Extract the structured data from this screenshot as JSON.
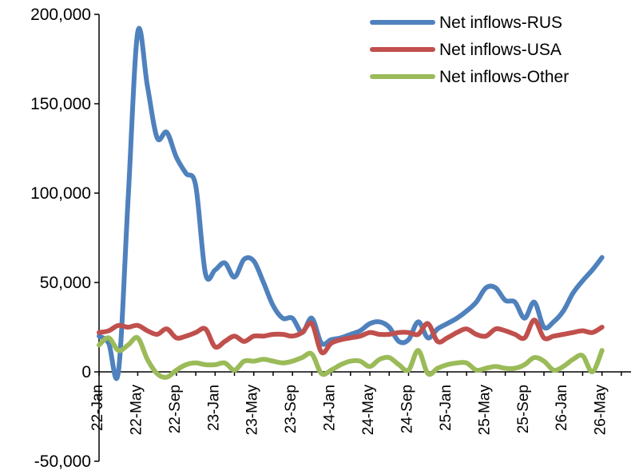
{
  "chart_data": {
    "type": "line",
    "title": "",
    "xlabel": "",
    "ylabel": "",
    "ylim": [
      -50000,
      200000
    ],
    "yticks": [
      -50000,
      0,
      50000,
      100000,
      150000,
      200000
    ],
    "ytick_labels": [
      "-50,000",
      "0",
      "50,000",
      "100,000",
      "150,000",
      "200,000"
    ],
    "xticks": [
      {
        "pos": 0,
        "label": "22-Jan"
      },
      {
        "pos": 4,
        "label": "22-May"
      },
      {
        "pos": 8,
        "label": "22-Sep"
      },
      {
        "pos": 12,
        "label": "23-Jan"
      },
      {
        "pos": 16,
        "label": "23-May"
      },
      {
        "pos": 20,
        "label": "23-Sep"
      },
      {
        "pos": 24,
        "label": "24-Jan"
      },
      {
        "pos": 28,
        "label": "24-May"
      },
      {
        "pos": 32,
        "label": "24-Sep"
      },
      {
        "pos": 36,
        "label": "25-Jan"
      },
      {
        "pos": 40,
        "label": "25-May"
      },
      {
        "pos": 44,
        "label": "25-Sep"
      },
      {
        "pos": 48,
        "label": "26-Jan"
      },
      {
        "pos": 52,
        "label": "26-May"
      }
    ],
    "x_min": 0,
    "x_max": 55,
    "grid": false,
    "legend_position": "top-right",
    "series": [
      {
        "name": "Net inflows-RUS",
        "color": "#4f81bd",
        "points": [
          [
            0,
            20000
          ],
          [
            1,
            16000
          ],
          [
            2,
            0
          ],
          [
            3,
            96000
          ],
          [
            4,
            190000
          ],
          [
            5,
            160000
          ],
          [
            6,
            131000
          ],
          [
            7,
            134000
          ],
          [
            8,
            120000
          ],
          [
            9,
            111000
          ],
          [
            10,
            104000
          ],
          [
            11,
            55000
          ],
          [
            12,
            57000
          ],
          [
            13,
            61000
          ],
          [
            14,
            53000
          ],
          [
            15,
            63000
          ],
          [
            16,
            62000
          ],
          [
            17,
            50000
          ],
          [
            18,
            37000
          ],
          [
            19,
            30000
          ],
          [
            20,
            30000
          ],
          [
            21,
            22000
          ],
          [
            22,
            30000
          ],
          [
            23,
            16000
          ],
          [
            24,
            18000
          ],
          [
            25,
            19000
          ],
          [
            26,
            21000
          ],
          [
            27,
            23000
          ],
          [
            28,
            27000
          ],
          [
            29,
            28000
          ],
          [
            30,
            25000
          ],
          [
            31,
            17000
          ],
          [
            32,
            18000
          ],
          [
            33,
            28000
          ],
          [
            34,
            19000
          ],
          [
            35,
            24000
          ],
          [
            36,
            27000
          ],
          [
            37,
            30000
          ],
          [
            38,
            34000
          ],
          [
            39,
            39000
          ],
          [
            40,
            47000
          ],
          [
            41,
            47000
          ],
          [
            42,
            40000
          ],
          [
            43,
            39000
          ],
          [
            44,
            30000
          ],
          [
            45,
            39000
          ],
          [
            46,
            25000
          ],
          [
            47,
            28000
          ],
          [
            48,
            34000
          ],
          [
            49,
            44000
          ],
          [
            50,
            51000
          ],
          [
            51,
            57000
          ],
          [
            52,
            64000
          ]
        ]
      },
      {
        "name": "Net inflows-USA",
        "color": "#c0504d",
        "points": [
          [
            0,
            22000
          ],
          [
            1,
            23000
          ],
          [
            2,
            26000
          ],
          [
            3,
            25000
          ],
          [
            4,
            26000
          ],
          [
            5,
            23000
          ],
          [
            6,
            21000
          ],
          [
            7,
            24000
          ],
          [
            8,
            19000
          ],
          [
            9,
            20000
          ],
          [
            10,
            22000
          ],
          [
            11,
            24000
          ],
          [
            12,
            14000
          ],
          [
            13,
            17000
          ],
          [
            14,
            20000
          ],
          [
            15,
            17000
          ],
          [
            16,
            20000
          ],
          [
            17,
            20000
          ],
          [
            18,
            21000
          ],
          [
            19,
            21000
          ],
          [
            20,
            20000
          ],
          [
            21,
            22000
          ],
          [
            22,
            27000
          ],
          [
            23,
            11000
          ],
          [
            24,
            16000
          ],
          [
            25,
            18000
          ],
          [
            26,
            19000
          ],
          [
            27,
            20000
          ],
          [
            28,
            22000
          ],
          [
            29,
            21000
          ],
          [
            30,
            21000
          ],
          [
            31,
            22000
          ],
          [
            32,
            22000
          ],
          [
            33,
            21000
          ],
          [
            34,
            27000
          ],
          [
            35,
            17000
          ],
          [
            36,
            19000
          ],
          [
            37,
            22000
          ],
          [
            38,
            24000
          ],
          [
            39,
            21000
          ],
          [
            40,
            20000
          ],
          [
            41,
            24000
          ],
          [
            42,
            23000
          ],
          [
            43,
            21000
          ],
          [
            44,
            19000
          ],
          [
            45,
            29000
          ],
          [
            46,
            19000
          ],
          [
            47,
            20000
          ],
          [
            48,
            21000
          ],
          [
            49,
            22000
          ],
          [
            50,
            23000
          ],
          [
            51,
            22000
          ],
          [
            52,
            25000
          ]
        ]
      },
      {
        "name": "Net inflows-Other",
        "color": "#9bbb59",
        "points": [
          [
            0,
            15000
          ],
          [
            1,
            19000
          ],
          [
            2,
            12000
          ],
          [
            3,
            15000
          ],
          [
            4,
            19000
          ],
          [
            5,
            7000
          ],
          [
            6,
            -1000
          ],
          [
            7,
            -3000
          ],
          [
            8,
            1000
          ],
          [
            9,
            4000
          ],
          [
            10,
            5000
          ],
          [
            11,
            4000
          ],
          [
            12,
            4000
          ],
          [
            13,
            5000
          ],
          [
            14,
            1000
          ],
          [
            15,
            6000
          ],
          [
            16,
            6000
          ],
          [
            17,
            7000
          ],
          [
            18,
            6000
          ],
          [
            19,
            5000
          ],
          [
            20,
            6000
          ],
          [
            21,
            8000
          ],
          [
            22,
            10000
          ],
          [
            23,
            -1000
          ],
          [
            24,
            1000
          ],
          [
            25,
            4000
          ],
          [
            26,
            6000
          ],
          [
            27,
            6000
          ],
          [
            28,
            3000
          ],
          [
            29,
            7000
          ],
          [
            30,
            8000
          ],
          [
            31,
            4000
          ],
          [
            32,
            1000
          ],
          [
            33,
            12000
          ],
          [
            34,
            -1000
          ],
          [
            35,
            2000
          ],
          [
            36,
            4000
          ],
          [
            37,
            5000
          ],
          [
            38,
            5000
          ],
          [
            39,
            1000
          ],
          [
            40,
            2000
          ],
          [
            41,
            3000
          ],
          [
            42,
            2000
          ],
          [
            43,
            2000
          ],
          [
            44,
            4000
          ],
          [
            45,
            8000
          ],
          [
            46,
            6000
          ],
          [
            47,
            1000
          ],
          [
            48,
            3000
          ],
          [
            49,
            7000
          ],
          [
            50,
            9000
          ],
          [
            51,
            0
          ],
          [
            52,
            12000
          ]
        ]
      }
    ]
  }
}
